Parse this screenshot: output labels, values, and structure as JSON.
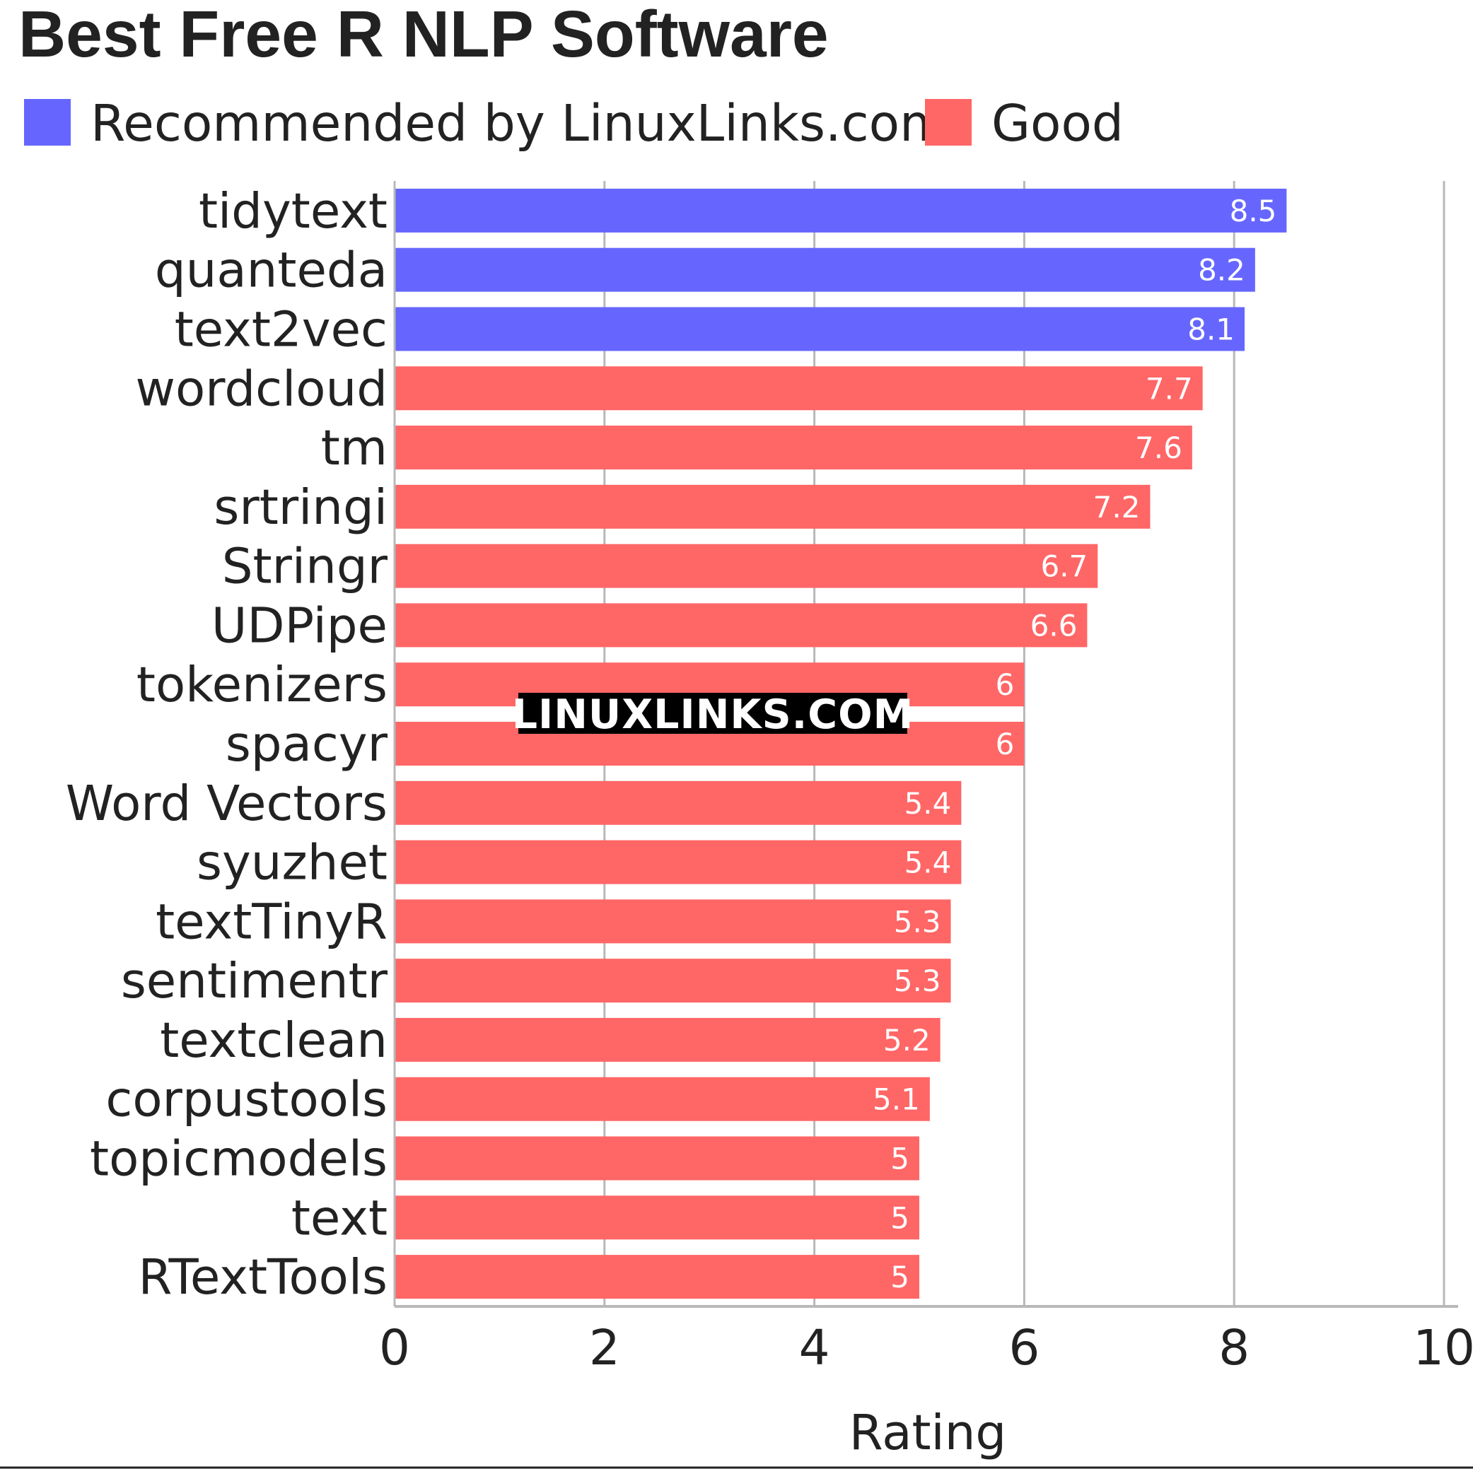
{
  "chart_data": {
    "type": "bar",
    "orientation": "horizontal",
    "title": "Best Free R NLP Software",
    "xlabel": "Rating",
    "ylabel": "",
    "xlim": [
      0,
      10
    ],
    "x_ticks": [
      0,
      2,
      4,
      6,
      8,
      10
    ],
    "grid": true,
    "legend_position": "top-left",
    "legend": [
      {
        "label": "Recommended by LinuxLinks.com",
        "color": "#6666ff"
      },
      {
        "label": "Good",
        "color": "#ff6666"
      }
    ],
    "categories": [
      "tidytext",
      "quanteda",
      "text2vec",
      "wordcloud",
      "tm",
      "srtringi",
      "Stringr",
      "UDPipe",
      "tokenizers",
      "spacyr",
      "Word Vectors",
      "syuzhet",
      "textTinyR",
      "sentimentr",
      "textclean",
      "corpustools",
      "topicmodels",
      "text",
      "RTextTools"
    ],
    "values": [
      8.5,
      8.2,
      8.1,
      7.7,
      7.6,
      7.2,
      6.7,
      6.6,
      6,
      6,
      5.4,
      5.4,
      5.3,
      5.3,
      5.2,
      5.1,
      5,
      5,
      5
    ],
    "groups": [
      "Recommended by LinuxLinks.com",
      "Recommended by LinuxLinks.com",
      "Recommended by LinuxLinks.com",
      "Good",
      "Good",
      "Good",
      "Good",
      "Good",
      "Good",
      "Good",
      "Good",
      "Good",
      "Good",
      "Good",
      "Good",
      "Good",
      "Good",
      "Good",
      "Good"
    ],
    "watermark": "LINUXLINKS.COM"
  }
}
